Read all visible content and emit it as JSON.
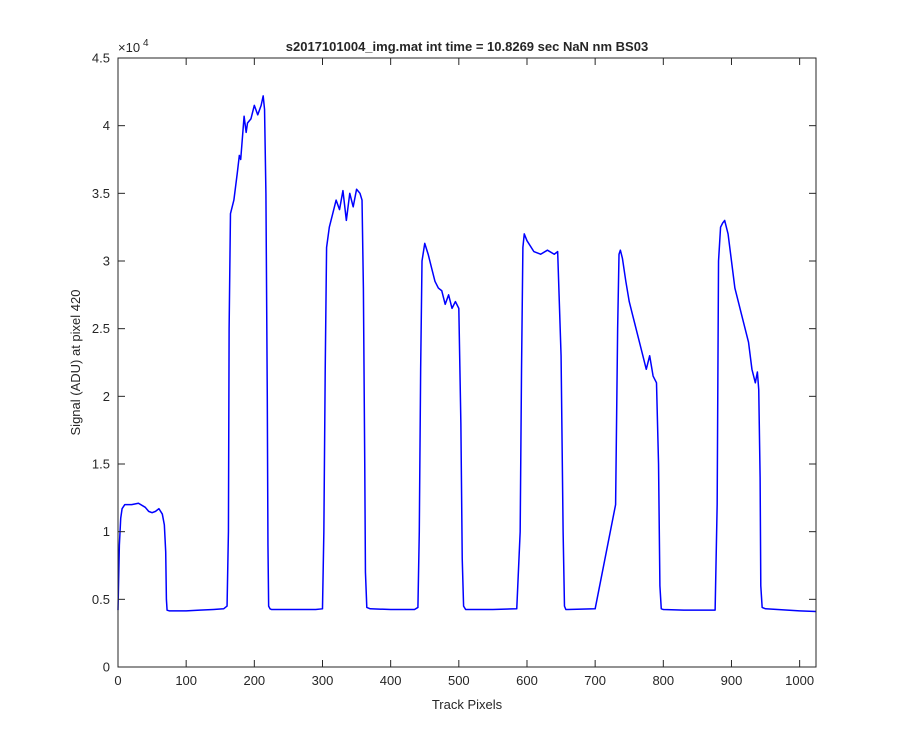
{
  "chart_data": {
    "type": "line",
    "title": "s2017101004_img.mat int time = 10.8269 sec  NaN nm BS03",
    "xlabel": "Track Pixels",
    "ylabel": "Signal (ADU) at pixel 420",
    "xlim": [
      0,
      1024
    ],
    "ylim": [
      0,
      45000
    ],
    "xticks": [
      0,
      100,
      200,
      300,
      400,
      500,
      600,
      700,
      800,
      900,
      1000
    ],
    "yticks": [
      0,
      0.5,
      1,
      1.5,
      2,
      2.5,
      3,
      3.5,
      4,
      4.5
    ],
    "y_exponent_label": "×10",
    "y_exponent_power": "4",
    "grid": false,
    "line_color": "#0000ff",
    "series": [
      {
        "x": [
          0,
          2,
          4,
          6,
          10,
          20,
          30,
          40,
          45,
          50,
          55,
          60,
          65,
          68,
          70,
          71,
          72,
          75,
          80,
          100,
          120,
          140,
          155,
          160,
          162,
          163,
          165,
          170,
          175,
          178,
          180,
          185,
          188,
          190,
          195,
          200,
          205,
          210,
          213,
          215,
          217,
          219,
          220,
          221,
          223,
          225,
          230,
          260,
          290,
          300,
          302,
          304,
          306,
          310,
          315,
          320,
          325,
          330,
          335,
          340,
          345,
          350,
          355,
          358,
          360,
          362,
          363,
          365,
          370,
          400,
          435,
          440,
          442,
          444,
          446,
          450,
          455,
          460,
          465,
          470,
          475,
          480,
          485,
          490,
          495,
          500,
          503,
          505,
          507,
          510,
          550,
          585,
          590,
          592,
          594,
          596,
          600,
          610,
          620,
          630,
          640,
          645,
          650,
          653,
          655,
          657,
          660,
          700,
          730,
          733,
          735,
          737,
          740,
          745,
          750,
          755,
          760,
          765,
          770,
          775,
          780,
          785,
          790,
          793,
          795,
          797,
          800,
          830,
          876,
          879,
          881,
          884,
          887,
          890,
          895,
          900,
          905,
          910,
          915,
          920,
          925,
          930,
          935,
          938,
          940,
          942,
          943,
          945,
          950,
          1000,
          1024
        ],
        "y": [
          4200,
          9000,
          11000,
          11700,
          12000,
          12000,
          12100,
          11800,
          11500,
          11400,
          11500,
          11700,
          11300,
          10500,
          8500,
          5000,
          4200,
          4150,
          4150,
          4150,
          4200,
          4250,
          4300,
          4500,
          10000,
          25000,
          33500,
          34500,
          36500,
          37800,
          37500,
          40700,
          39500,
          40200,
          40500,
          41500,
          40800,
          41500,
          42200,
          41200,
          35000,
          20000,
          9000,
          4500,
          4300,
          4250,
          4250,
          4250,
          4250,
          4300,
          10000,
          22000,
          31000,
          32500,
          33500,
          34500,
          33800,
          35200,
          33000,
          35000,
          34000,
          35300,
          35000,
          34500,
          28000,
          15000,
          7000,
          4400,
          4300,
          4250,
          4250,
          4400,
          10000,
          22000,
          30000,
          31300,
          30500,
          29500,
          28500,
          28000,
          27800,
          26800,
          27500,
          26500,
          27000,
          26500,
          18000,
          8000,
          4500,
          4250,
          4250,
          4300,
          10000,
          22000,
          31000,
          32000,
          31500,
          30700,
          30500,
          30800,
          30500,
          30700,
          23000,
          10000,
          4500,
          4250,
          4250,
          4300,
          12000,
          25000,
          30500,
          30800,
          30200,
          28500,
          27000,
          26000,
          25000,
          24000,
          23000,
          22000,
          23000,
          21500,
          21000,
          15000,
          6000,
          4300,
          4250,
          4200,
          4200,
          12000,
          30000,
          32500,
          32800,
          33000,
          32000,
          30000,
          28000,
          27000,
          26000,
          25000,
          24000,
          22000,
          21000,
          21800,
          20500,
          14000,
          6000,
          4400,
          4300,
          4150,
          4100
        ]
      }
    ]
  }
}
